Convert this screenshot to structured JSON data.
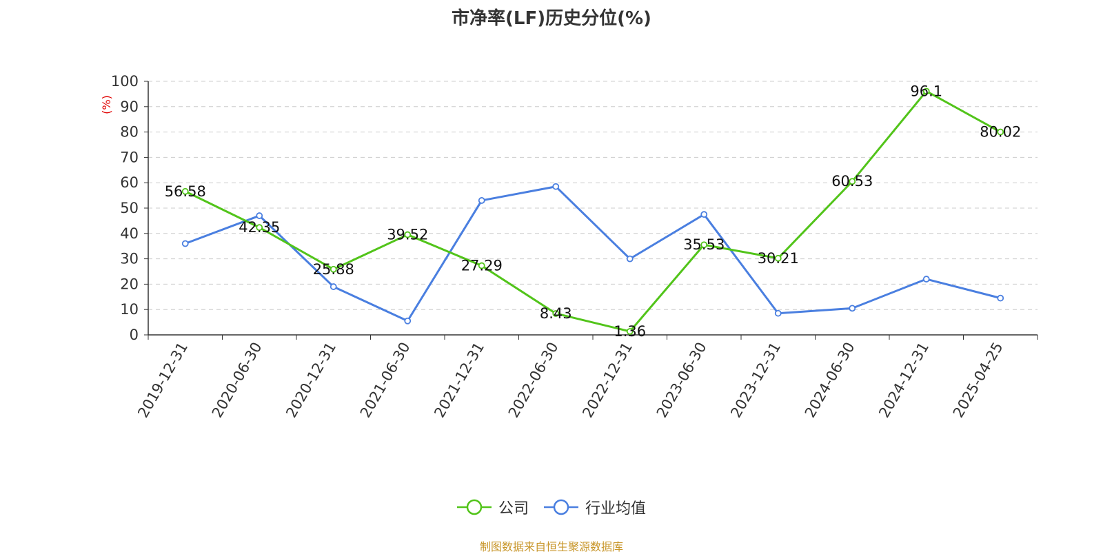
{
  "chart_data": {
    "type": "line",
    "title": "市净率(LF)历史分位(%)",
    "ylabel": "(%)",
    "xlabel": "",
    "ylim": [
      0,
      100
    ],
    "yticks": [
      0,
      10,
      20,
      30,
      40,
      50,
      60,
      70,
      80,
      90,
      100
    ],
    "categories": [
      "2019-12-31",
      "2020-06-30",
      "2020-12-31",
      "2021-06-30",
      "2021-12-31",
      "2022-06-30",
      "2022-12-31",
      "2023-06-30",
      "2023-12-31",
      "2024-06-30",
      "2024-12-31",
      "2025-04-25"
    ],
    "grid": true,
    "legend_position": "bottom",
    "series": [
      {
        "name": "公司",
        "color": "#52c41a",
        "values": [
          56.58,
          42.35,
          25.88,
          39.52,
          27.29,
          8.43,
          1.36,
          35.53,
          30.21,
          60.53,
          96.1,
          80.02
        ],
        "labels": [
          "56.58",
          "42.35",
          "25.88",
          "39.52",
          "27.29",
          "8.43",
          "1.36",
          "35.53",
          "30.21",
          "60.53",
          "96.1",
          "80.02"
        ]
      },
      {
        "name": "行业均值",
        "color": "#4a7fe0",
        "values": [
          36,
          47,
          19,
          5.5,
          53,
          58.5,
          30,
          47.5,
          8.5,
          10.5,
          22,
          14.5
        ]
      }
    ]
  },
  "source": "制图数据来自恒生聚源数据库"
}
